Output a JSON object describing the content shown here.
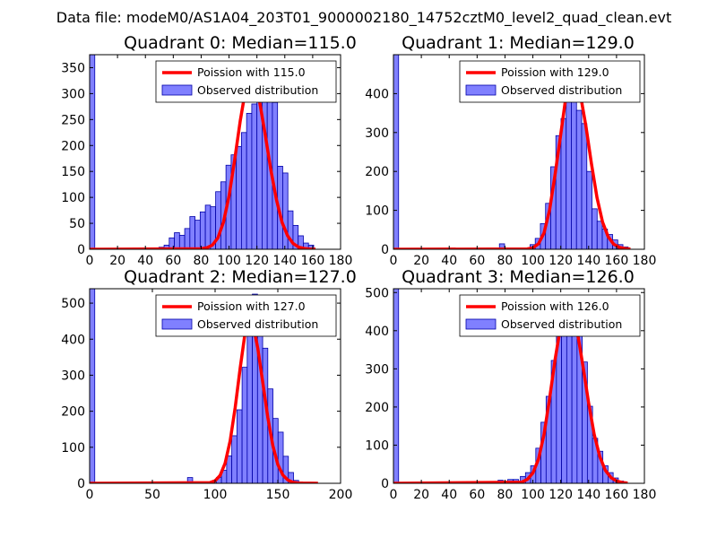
{
  "figure_title": "Data file: modeM0/AS1A04_203T01_9000002180_14752cztM0_level2_quad_clean.evt",
  "colors": {
    "bar_fill": "#8080ff",
    "bar_edge": "#0000a8",
    "fit_line": "#ff0000",
    "frame": "#000000",
    "background": "#ffffff"
  },
  "chart_data": [
    {
      "type": "bar",
      "title": "Quadrant 0: Median=115.0",
      "median": 115.0,
      "xlim": [
        0,
        180
      ],
      "ylim": [
        0,
        375
      ],
      "xticks": [
        0,
        20,
        40,
        60,
        80,
        100,
        120,
        140,
        160,
        180
      ],
      "yticks": [
        0,
        50,
        100,
        150,
        200,
        250,
        300,
        350
      ],
      "bin_width": 3.7,
      "bins": {
        "x": [
          0,
          49.7,
          53.4,
          57.1,
          60.8,
          64.5,
          68.2,
          71.9,
          75.6,
          79.3,
          83.0,
          86.7,
          90.4,
          94.1,
          97.8,
          101.5,
          105.2,
          108.9,
          112.6,
          116.3,
          120.0,
          123.7,
          127.4,
          131.1,
          134.8,
          138.5,
          142.2,
          145.9,
          149.6,
          153.3,
          157.0
        ],
        "counts": [
          375,
          4,
          8,
          22,
          32,
          27,
          40,
          63,
          56,
          72,
          85,
          82,
          111,
          130,
          162,
          182,
          198,
          225,
          262,
          280,
          296,
          328,
          339,
          283,
          160,
          147,
          74,
          46,
          26,
          12,
          8
        ]
      },
      "fit_series": {
        "label": "Poission with 115.0",
        "x": [
          80,
          84,
          88,
          92,
          96,
          100,
          104,
          108,
          112,
          115,
          118,
          122,
          126,
          130,
          134,
          138,
          142,
          146,
          150,
          154,
          158,
          162
        ],
        "y": [
          1,
          3,
          8,
          22,
          52,
          103,
          172,
          247,
          310,
          330,
          320,
          283,
          220,
          153,
          96,
          52,
          26,
          11,
          4,
          1.5,
          0.5,
          0.2
        ]
      },
      "legend": [
        "Poission with 115.0",
        "Observed distribution"
      ],
      "legend_loc": "upper right"
    },
    {
      "type": "bar",
      "title": "Quadrant 1: Median=129.0",
      "median": 129.0,
      "xlim": [
        0,
        180
      ],
      "ylim": [
        0,
        500
      ],
      "xticks": [
        0,
        20,
        40,
        60,
        80,
        100,
        120,
        140,
        160,
        180
      ],
      "yticks": [
        0,
        100,
        200,
        300,
        400
      ],
      "bin_width": 3.7,
      "bins": {
        "x": [
          0,
          76.0,
          98.0,
          101.7,
          105.4,
          109.1,
          112.8,
          116.5,
          120.2,
          123.9,
          127.6,
          131.3,
          135.0,
          138.7,
          142.4,
          146.1,
          149.8,
          153.5,
          157.2,
          160.9,
          164.6
        ],
        "counts": [
          500,
          14,
          12,
          28,
          66,
          118,
          212,
          292,
          336,
          415,
          395,
          357,
          323,
          200,
          104,
          72,
          52,
          38,
          24,
          12,
          6
        ]
      },
      "fit_series": {
        "label": "Poission with 129.0",
        "x": [
          96,
          100,
          104,
          108,
          112,
          116,
          120,
          124,
          129,
          134,
          138,
          142,
          146,
          150,
          154,
          158,
          162,
          166,
          170
        ],
        "y": [
          1,
          4,
          14,
          42,
          101,
          193,
          296,
          400,
          450,
          400,
          317,
          220,
          133,
          70,
          32,
          13,
          5,
          1.8,
          0.6
        ]
      },
      "legend": [
        "Poission with 129.0",
        "Observed distribution"
      ],
      "legend_loc": "upper right"
    },
    {
      "type": "bar",
      "title": "Quadrant 2: Median=127.0",
      "median": 127.0,
      "xlim": [
        0,
        200
      ],
      "ylim": [
        0,
        540
      ],
      "xticks": [
        0,
        50,
        100,
        150,
        200
      ],
      "yticks": [
        0,
        100,
        200,
        300,
        400,
        500
      ],
      "bin_width": 4.1,
      "bins": {
        "x": [
          0,
          78.0,
          101.0,
          105.1,
          109.2,
          113.3,
          117.4,
          121.5,
          125.6,
          129.7,
          133.8,
          137.9,
          142.0,
          146.1,
          150.2,
          154.3,
          158.4,
          162.5
        ],
        "counts": [
          540,
          16,
          16,
          36,
          76,
          132,
          204,
          322,
          462,
          525,
          448,
          375,
          262,
          180,
          142,
          75,
          30,
          8
        ]
      },
      "fit_series": {
        "label": "Poission with 127.0",
        "x": [
          96,
          100,
          104,
          108,
          112,
          116,
          120,
          124,
          127,
          130,
          134,
          138,
          142,
          146,
          150,
          154,
          158,
          162,
          166,
          170,
          182
        ],
        "y": [
          2,
          7,
          22,
          56,
          118,
          210,
          320,
          420,
          455,
          445,
          375,
          280,
          183,
          105,
          52,
          23,
          9,
          3,
          1,
          0.4,
          0
        ]
      },
      "legend": [
        "Poission with 127.0",
        "Observed distribution"
      ],
      "legend_loc": "upper right"
    },
    {
      "type": "bar",
      "title": "Quadrant 3: Median=126.0",
      "median": 126.0,
      "xlim": [
        0,
        180
      ],
      "ylim": [
        0,
        510
      ],
      "xticks": [
        0,
        20,
        40,
        60,
        80,
        100,
        120,
        140,
        160,
        180
      ],
      "yticks": [
        0,
        100,
        200,
        300,
        400,
        500
      ],
      "bin_width": 3.7,
      "bins": {
        "x": [
          0,
          75.0,
          82.0,
          86.0,
          91.0,
          94.7,
          98.4,
          102.1,
          105.8,
          109.5,
          113.2,
          116.9,
          120.6,
          124.3,
          128.0,
          131.7,
          135.4,
          139.1,
          142.8,
          146.5,
          150.2,
          153.9,
          157.6,
          161.3
        ],
        "counts": [
          510,
          8,
          10,
          10,
          18,
          28,
          46,
          92,
          160,
          228,
          322,
          386,
          412,
          438,
          462,
          410,
          318,
          202,
          118,
          84,
          46,
          28,
          14,
          6
        ]
      },
      "fit_series": {
        "label": "Poission with 126.0",
        "x": [
          92,
          96,
          100,
          104,
          108,
          112,
          116,
          120,
          124,
          126,
          128,
          132,
          136,
          140,
          144,
          148,
          152,
          156,
          160,
          164,
          168
        ],
        "y": [
          3,
          10,
          27,
          63,
          128,
          222,
          325,
          414,
          460,
          465,
          455,
          395,
          305,
          210,
          128,
          70,
          34,
          15,
          6,
          2,
          0.7
        ]
      },
      "legend": [
        "Poission with 126.0",
        "Observed distribution"
      ],
      "legend_loc": "upper right"
    }
  ]
}
